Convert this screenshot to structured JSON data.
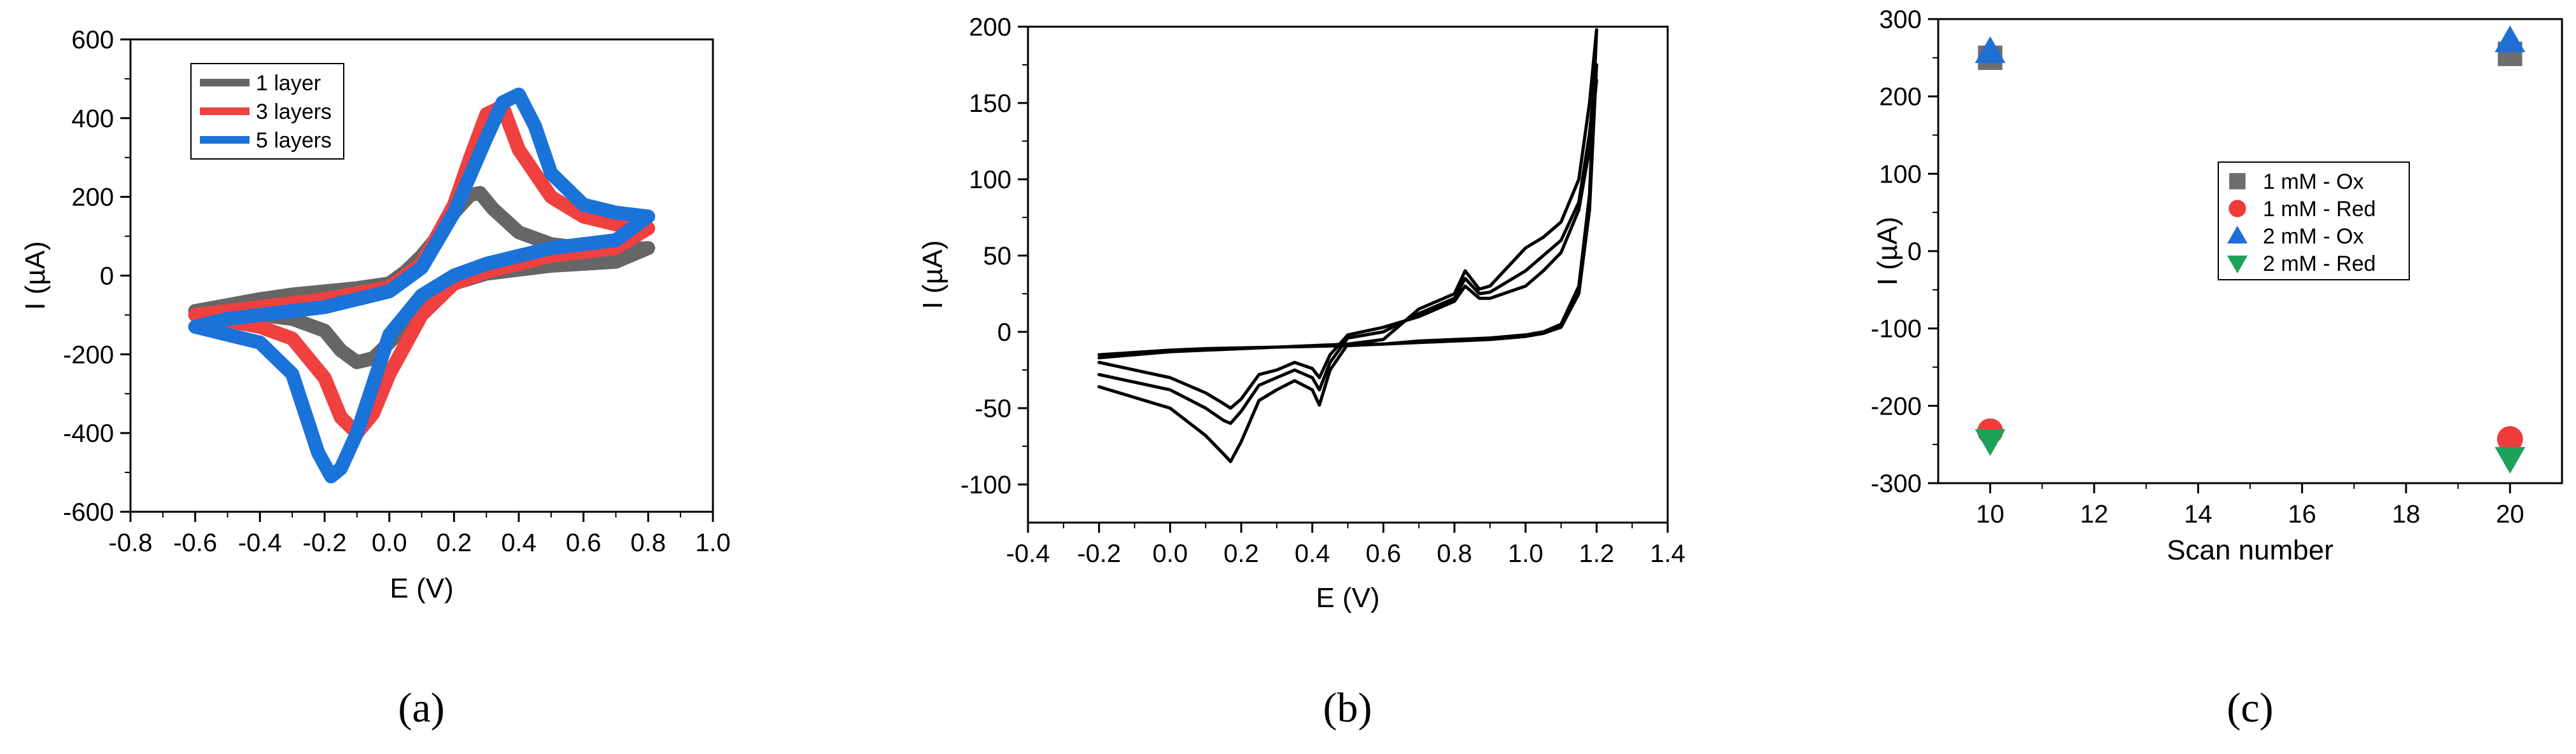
{
  "chart_data": [
    {
      "type": "line",
      "panel_label": "(a)",
      "title": "",
      "xlabel": "E (V)",
      "ylabel": "I (µA)",
      "xlim": [
        -0.8,
        1.0
      ],
      "ylim": [
        -600,
        600
      ],
      "x_ticks": [
        "-0.8",
        "-0.6",
        "-0.4",
        "-0.2",
        "0.0",
        "0.2",
        "0.4",
        "0.6",
        "0.8",
        "1.0"
      ],
      "y_ticks": [
        "-600",
        "-400",
        "-200",
        "0",
        "200",
        "400",
        "600"
      ],
      "legend_position": "top-left",
      "series": [
        {
          "name": "1 layer",
          "color": "#666666",
          "x": [
            -0.6,
            -0.5,
            -0.4,
            -0.3,
            -0.2,
            -0.1,
            0.0,
            0.05,
            0.1,
            0.15,
            0.2,
            0.25,
            0.28,
            0.32,
            0.4,
            0.5,
            0.6,
            0.7,
            0.8,
            0.7,
            0.6,
            0.5,
            0.4,
            0.3,
            0.2,
            0.1,
            0.0,
            -0.05,
            -0.1,
            -0.15,
            -0.2,
            -0.3,
            -0.4,
            -0.5,
            -0.6
          ],
          "y": [
            -90,
            -75,
            -60,
            -48,
            -40,
            -32,
            -20,
            10,
            50,
            100,
            160,
            205,
            210,
            170,
            110,
            80,
            70,
            65,
            70,
            35,
            30,
            25,
            15,
            5,
            -20,
            -80,
            -170,
            -210,
            -220,
            -190,
            -140,
            -110,
            -100,
            -95,
            -90
          ]
        },
        {
          "name": "3 layers",
          "color": "#f04040",
          "x": [
            -0.6,
            -0.5,
            -0.4,
            -0.3,
            -0.2,
            0.0,
            0.1,
            0.2,
            0.25,
            0.3,
            0.35,
            0.4,
            0.5,
            0.6,
            0.7,
            0.8,
            0.7,
            0.6,
            0.5,
            0.4,
            0.3,
            0.2,
            0.1,
            0.0,
            -0.05,
            -0.1,
            -0.15,
            -0.2,
            -0.3,
            -0.4,
            -0.5,
            -0.6
          ],
          "y": [
            -100,
            -90,
            -80,
            -70,
            -60,
            -30,
            30,
            180,
            300,
            410,
            430,
            320,
            200,
            150,
            130,
            120,
            70,
            60,
            50,
            30,
            10,
            -20,
            -100,
            -250,
            -350,
            -400,
            -360,
            -260,
            -160,
            -130,
            -115,
            -100
          ]
        },
        {
          "name": "5 layers",
          "color": "#1a73d9",
          "x": [
            -0.6,
            -0.5,
            -0.4,
            -0.3,
            -0.2,
            0.0,
            0.1,
            0.2,
            0.3,
            0.35,
            0.4,
            0.45,
            0.5,
            0.6,
            0.7,
            0.8,
            0.7,
            0.6,
            0.5,
            0.4,
            0.3,
            0.2,
            0.1,
            0.0,
            -0.1,
            -0.15,
            -0.18,
            -0.22,
            -0.3,
            -0.4,
            -0.5,
            -0.6
          ],
          "y": [
            -130,
            -110,
            -100,
            -90,
            -80,
            -40,
            20,
            160,
            350,
            440,
            460,
            380,
            260,
            180,
            160,
            150,
            90,
            80,
            70,
            50,
            30,
            0,
            -50,
            -150,
            -400,
            -490,
            -510,
            -450,
            -250,
            -170,
            -150,
            -130
          ]
        }
      ]
    },
    {
      "type": "line",
      "panel_label": "(b)",
      "title": "",
      "xlabel": "E (V)",
      "ylabel": "I (µA)",
      "xlim": [
        -0.4,
        1.4
      ],
      "ylim": [
        -125,
        200
      ],
      "x_ticks": [
        "-0.4",
        "-0.2",
        "0.0",
        "0.2",
        "0.4",
        "0.6",
        "0.8",
        "1.0",
        "1.2",
        "1.4"
      ],
      "y_ticks": [
        "-100",
        "-50",
        "0",
        "50",
        "100",
        "150",
        "200"
      ],
      "series": [
        {
          "color": "#000000",
          "x": [
            -0.2,
            0.0,
            0.1,
            0.15,
            0.17,
            0.2,
            0.25,
            0.3,
            0.35,
            0.4,
            0.42,
            0.45,
            0.5,
            0.6,
            0.7,
            0.8,
            0.83,
            0.87,
            0.9,
            1.0,
            1.05,
            1.1,
            1.15,
            1.18,
            1.2,
            1.18,
            1.15,
            1.1,
            1.05,
            1.0,
            0.9,
            0.8,
            0.7,
            0.6,
            0.5,
            0.3,
            0.1,
            0.0,
            -0.2
          ],
          "y": [
            -36,
            -50,
            -68,
            -80,
            -85,
            -72,
            -45,
            -38,
            -32,
            -38,
            -48,
            -25,
            -8,
            -5,
            15,
            25,
            40,
            28,
            30,
            55,
            62,
            72,
            100,
            150,
            198,
            90,
            30,
            5,
            0,
            -2,
            -4,
            -5,
            -6,
            -8,
            -8,
            -10,
            -12,
            -13,
            -17
          ]
        },
        {
          "color": "#000000",
          "x": [
            -0.2,
            0.0,
            0.1,
            0.15,
            0.17,
            0.2,
            0.25,
            0.3,
            0.35,
            0.4,
            0.42,
            0.45,
            0.5,
            0.6,
            0.7,
            0.8,
            0.83,
            0.87,
            0.9,
            1.0,
            1.05,
            1.1,
            1.15,
            1.18,
            1.2,
            1.18,
            1.15,
            1.1,
            1.05,
            1.0,
            0.9,
            0.8,
            0.7,
            0.6,
            0.5,
            0.3,
            0.1,
            0.0,
            -0.2
          ],
          "y": [
            -28,
            -38,
            -50,
            -58,
            -60,
            -52,
            -35,
            -30,
            -25,
            -30,
            -38,
            -20,
            -4,
            0,
            12,
            22,
            35,
            25,
            26,
            40,
            50,
            60,
            85,
            130,
            175,
            80,
            25,
            3,
            -1,
            -3,
            -5,
            -6,
            -7,
            -8,
            -9,
            -10,
            -11,
            -12,
            -15
          ]
        },
        {
          "color": "#000000",
          "x": [
            -0.2,
            0.0,
            0.1,
            0.15,
            0.17,
            0.2,
            0.25,
            0.3,
            0.35,
            0.4,
            0.42,
            0.45,
            0.5,
            0.6,
            0.7,
            0.8,
            0.83,
            0.87,
            0.9,
            1.0,
            1.05,
            1.1,
            1.15,
            1.18,
            1.2
          ],
          "y": [
            -20,
            -30,
            -40,
            -47,
            -50,
            -44,
            -28,
            -25,
            -20,
            -24,
            -30,
            -15,
            -2,
            3,
            10,
            20,
            30,
            22,
            22,
            30,
            40,
            52,
            80,
            120,
            165
          ]
        }
      ]
    },
    {
      "type": "scatter",
      "panel_label": "(c)",
      "title": "",
      "xlabel": "Scan number",
      "ylabel": "I (µA)",
      "xlim": [
        9,
        21
      ],
      "ylim": [
        -300,
        300
      ],
      "x_ticks": [
        "10",
        "12",
        "14",
        "16",
        "18",
        "20"
      ],
      "y_ticks": [
        "-300",
        "-200",
        "-100",
        "0",
        "100",
        "200",
        "300"
      ],
      "legend_position": "center",
      "series": [
        {
          "name": "1 mM - Ox",
          "marker": "square",
          "color": "#6e6e6e",
          "x": [
            10,
            20
          ],
          "y": [
            250,
            255
          ]
        },
        {
          "name": "1 mM - Red",
          "marker": "circle",
          "color": "#ee3b3b",
          "x": [
            10,
            20
          ],
          "y": [
            -233,
            -243
          ]
        },
        {
          "name": "2 mM - Ox",
          "marker": "triangle-up",
          "color": "#1f6fd6",
          "x": [
            10,
            20
          ],
          "y": [
            258,
            272
          ]
        },
        {
          "name": "2 mM - Red",
          "marker": "triangle-down",
          "color": "#1ea25a",
          "x": [
            10,
            20
          ],
          "y": [
            -245,
            -268
          ]
        }
      ]
    }
  ]
}
